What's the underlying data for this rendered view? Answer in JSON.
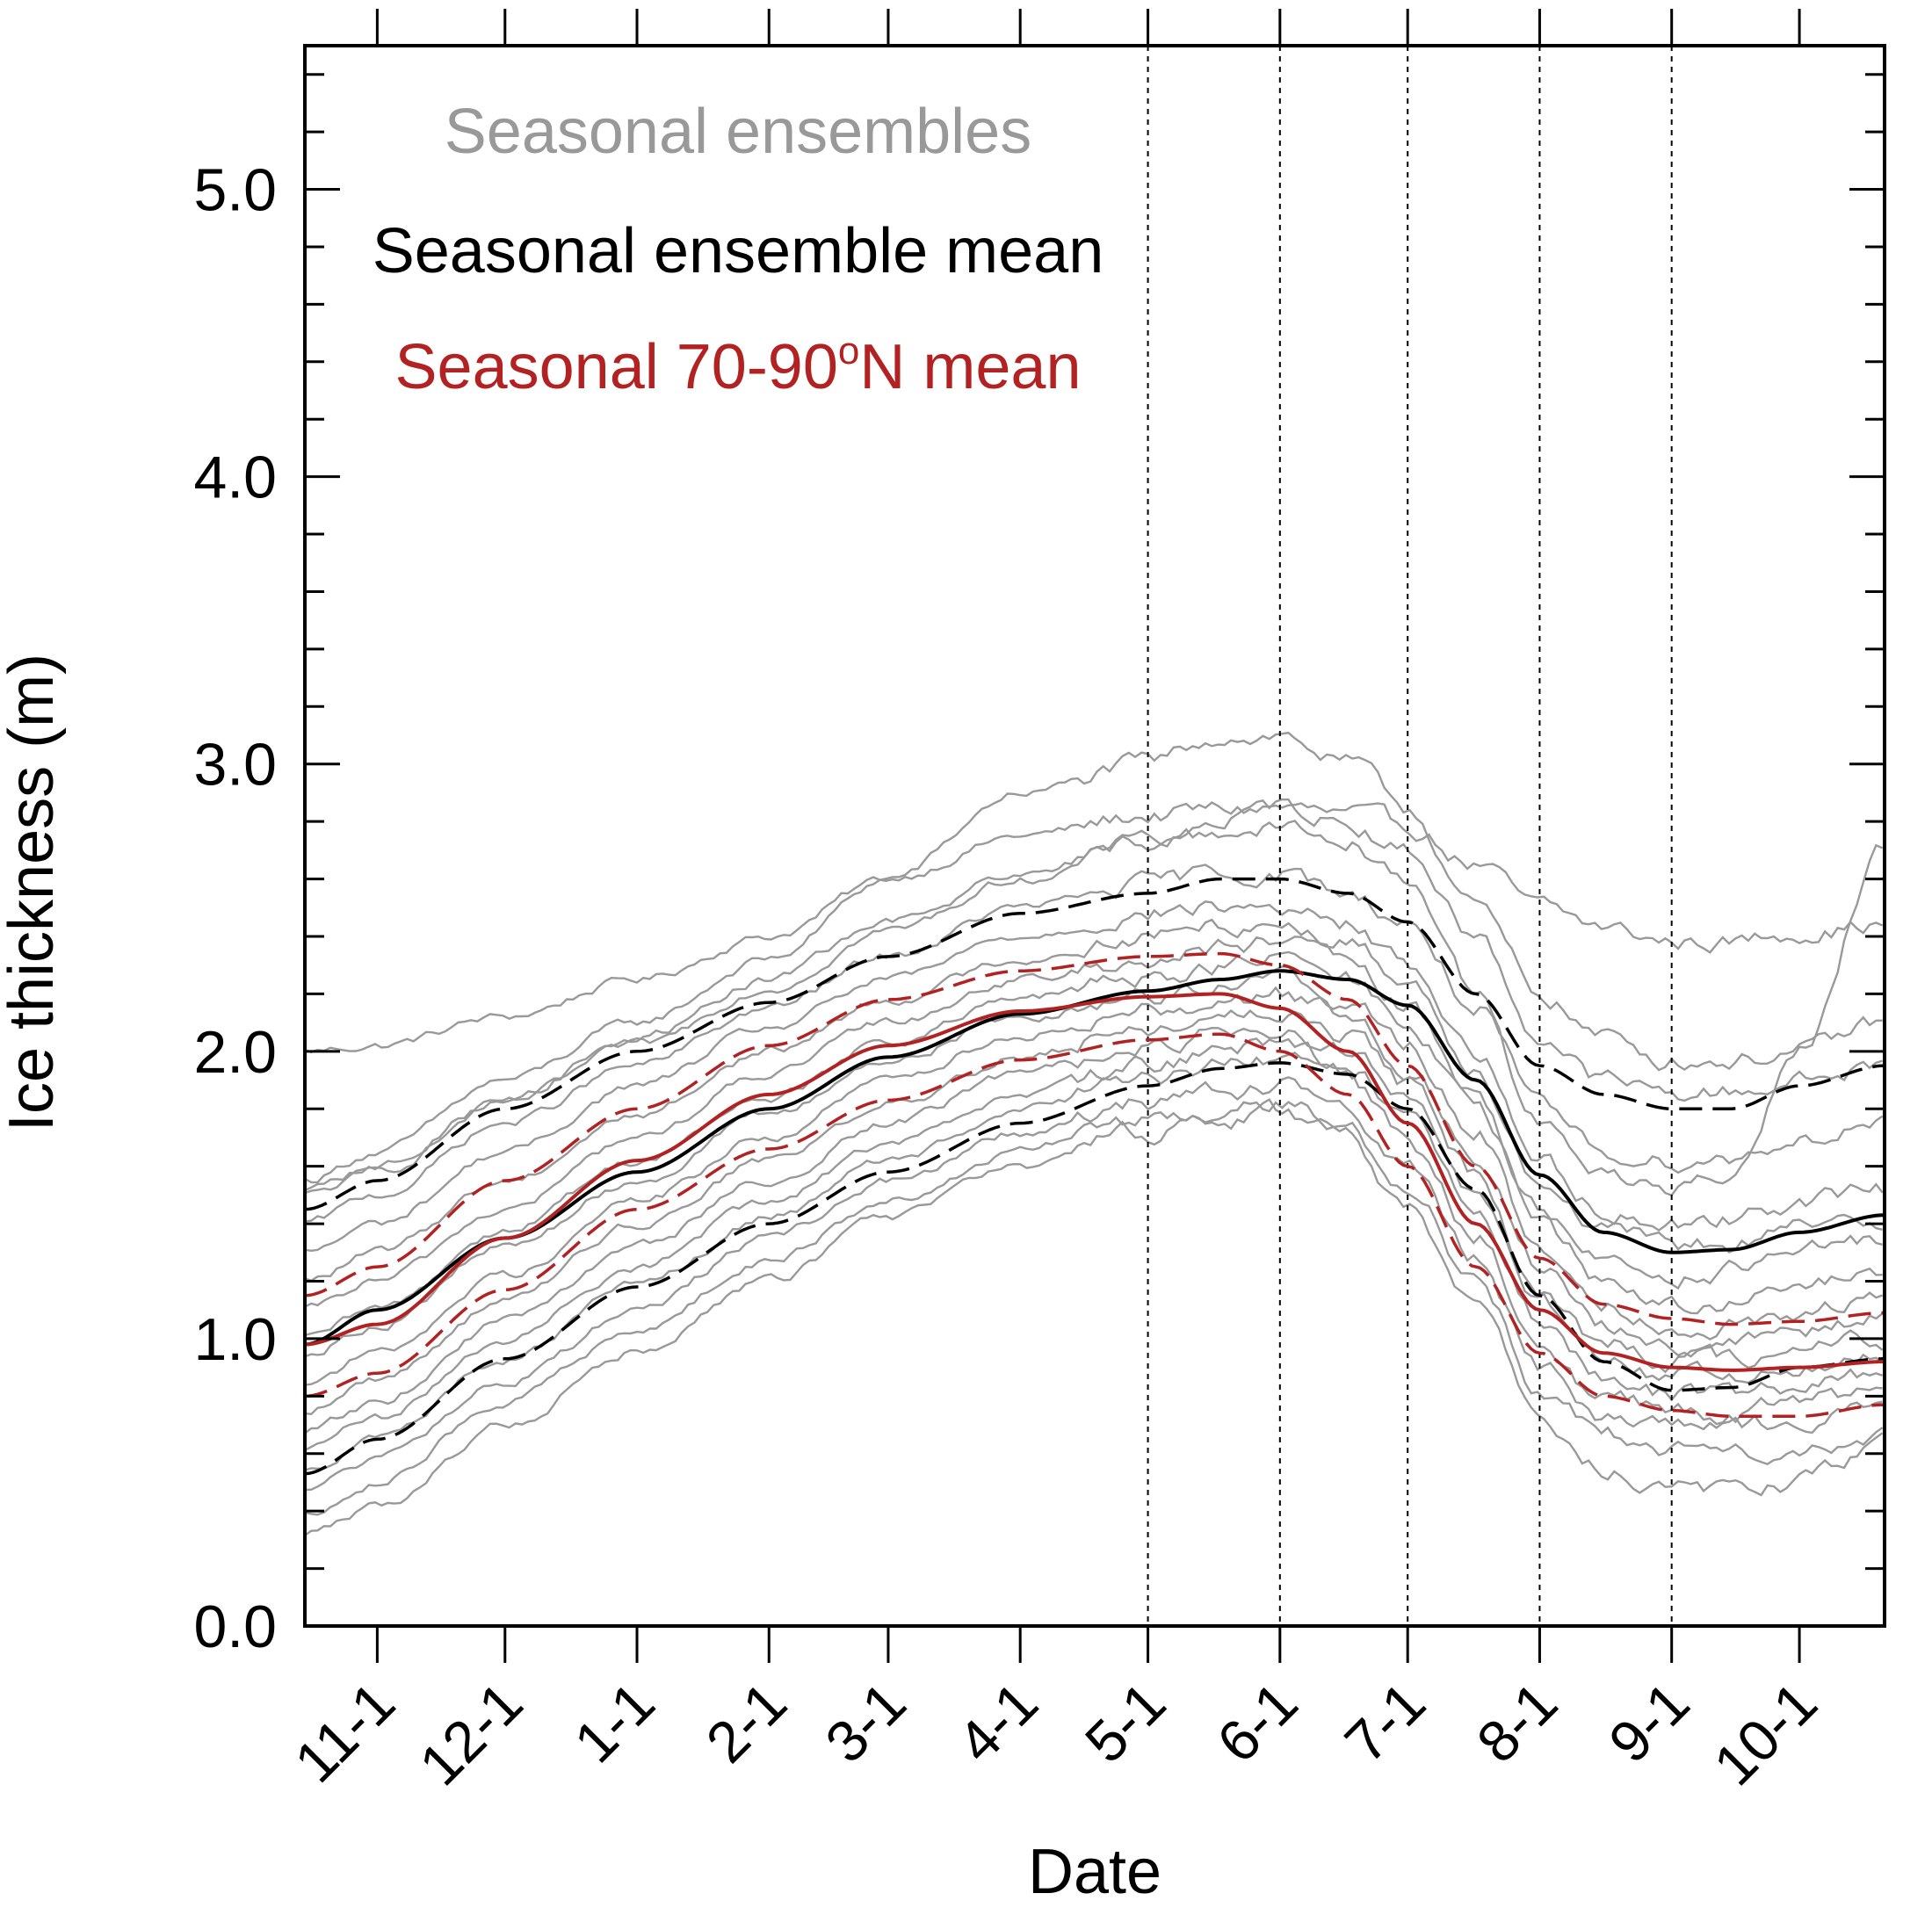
{
  "chart_data": {
    "type": "line",
    "title": "",
    "xlabel": "Date",
    "ylabel": "Ice thickness (m)",
    "x_unit": "days since Oct 15 (Oct 15 to Oct 20 of following year)",
    "xlim": [
      0,
      371
    ],
    "ylim": [
      0,
      5.5
    ],
    "y_ticks": [
      0.0,
      1.0,
      2.0,
      3.0,
      4.0,
      5.0
    ],
    "y_tick_labels": [
      "0.0",
      "1.0",
      "2.0",
      "3.0",
      "4.0",
      "5.0"
    ],
    "x_tick_labels": [
      "11-1",
      "12-1",
      "1-1",
      "2-1",
      "3-1",
      "4-1",
      "5-1",
      "6-1",
      "7-1",
      "8-1",
      "9-1",
      "10-1"
    ],
    "x_ticks": [
      17,
      47,
      78,
      109,
      137,
      168,
      198,
      229,
      259,
      290,
      321,
      351
    ],
    "vertical_dashed_lines": [
      198,
      229,
      259,
      290,
      321
    ],
    "grid": false,
    "legend_position": "top-left",
    "legend": [
      {
        "label": "Seasonal ensembles",
        "color": "#999999"
      },
      {
        "label": "Seasonal ensemble mean",
        "color": "#000000"
      },
      {
        "label": "Seasonal 70-90",
        "label_sup": "o",
        "label_end": "N mean",
        "color": "#b22222"
      }
    ],
    "colors": {
      "ensemble": "#999999",
      "ensemble_mean": "#000000",
      "regional_mean": "#b22222"
    },
    "series": [
      {
        "name": "Seasonal ensemble mean",
        "role": "mean",
        "color": "#000000",
        "style": "solid",
        "x": [
          0,
          17,
          47,
          78,
          109,
          137,
          168,
          198,
          215,
          229,
          245,
          259,
          275,
          290,
          305,
          321,
          335,
          351,
          371
        ],
        "y": [
          0.98,
          1.1,
          1.35,
          1.58,
          1.8,
          1.98,
          2.13,
          2.21,
          2.25,
          2.28,
          2.25,
          2.16,
          1.9,
          1.57,
          1.37,
          1.3,
          1.31,
          1.37,
          1.43
        ]
      },
      {
        "name": "Ensemble mean + spread",
        "role": "bound",
        "color": "#000000",
        "style": "dashed",
        "x": [
          0,
          17,
          47,
          78,
          109,
          137,
          168,
          198,
          215,
          229,
          245,
          259,
          275,
          290,
          305,
          321,
          335,
          351,
          371
        ],
        "y": [
          1.45,
          1.55,
          1.8,
          2.0,
          2.17,
          2.33,
          2.48,
          2.55,
          2.6,
          2.6,
          2.55,
          2.45,
          2.2,
          1.95,
          1.85,
          1.8,
          1.8,
          1.88,
          1.95
        ]
      },
      {
        "name": "Ensemble mean - spread",
        "role": "bound",
        "color": "#000000",
        "style": "dashed",
        "x": [
          0,
          17,
          47,
          78,
          109,
          137,
          168,
          198,
          215,
          229,
          245,
          259,
          275,
          290,
          305,
          321,
          335,
          351,
          371
        ],
        "y": [
          0.53,
          0.65,
          0.93,
          1.18,
          1.4,
          1.58,
          1.75,
          1.88,
          1.94,
          1.96,
          1.92,
          1.8,
          1.52,
          1.15,
          0.92,
          0.82,
          0.83,
          0.9,
          0.93
        ]
      },
      {
        "name": "Seasonal 70-90N mean",
        "role": "mean",
        "color": "#b22222",
        "style": "solid",
        "x": [
          0,
          17,
          47,
          78,
          109,
          137,
          168,
          198,
          215,
          229,
          245,
          259,
          275,
          290,
          305,
          321,
          335,
          351,
          371
        ],
        "y": [
          0.98,
          1.05,
          1.35,
          1.62,
          1.85,
          2.02,
          2.14,
          2.19,
          2.2,
          2.15,
          2.0,
          1.75,
          1.4,
          1.1,
          0.95,
          0.9,
          0.89,
          0.9,
          0.92
        ]
      },
      {
        "name": "70-90N mean + spread",
        "role": "bound",
        "color": "#b22222",
        "style": "dashed",
        "x": [
          0,
          17,
          47,
          78,
          109,
          137,
          168,
          198,
          215,
          229,
          245,
          259,
          275,
          290,
          305,
          321,
          335,
          351,
          371
        ],
        "y": [
          1.15,
          1.25,
          1.55,
          1.8,
          2.02,
          2.18,
          2.28,
          2.33,
          2.34,
          2.3,
          2.18,
          1.95,
          1.6,
          1.28,
          1.12,
          1.07,
          1.05,
          1.06,
          1.09
        ]
      },
      {
        "name": "70-90N mean - spread",
        "role": "bound",
        "color": "#b22222",
        "style": "dashed",
        "x": [
          0,
          17,
          47,
          78,
          109,
          137,
          168,
          198,
          215,
          229,
          245,
          259,
          275,
          290,
          305,
          321,
          335,
          351,
          371
        ],
        "y": [
          0.8,
          0.88,
          1.17,
          1.45,
          1.66,
          1.83,
          1.97,
          2.04,
          2.06,
          2.0,
          1.85,
          1.6,
          1.25,
          0.95,
          0.8,
          0.75,
          0.73,
          0.73,
          0.77
        ]
      }
    ],
    "ensemble_members": [
      {
        "x": [
          0,
          17,
          47,
          78,
          109,
          137,
          168,
          198,
          215,
          229,
          245,
          259,
          275,
          290,
          305,
          321,
          335,
          351,
          371
        ],
        "y": [
          2.0,
          2.02,
          2.12,
          2.25,
          2.4,
          2.6,
          2.75,
          2.82,
          2.84,
          2.85,
          2.82,
          2.78,
          2.65,
          2.5,
          2.43,
          2.38,
          2.38,
          2.42,
          2.44
        ]
      },
      {
        "x": [
          0,
          17,
          47,
          78,
          109,
          137,
          168,
          198,
          215,
          229,
          245,
          259,
          275,
          290,
          305,
          321,
          335,
          351,
          371
        ],
        "y": [
          1.55,
          1.65,
          1.9,
          2.1,
          2.32,
          2.6,
          2.9,
          3.0,
          3.1,
          3.1,
          3.0,
          2.85,
          2.5,
          2.2,
          2.05,
          1.97,
          1.97,
          2.0,
          2.1
        ]
      },
      {
        "x": [
          0,
          17,
          47,
          78,
          109,
          137,
          168,
          198,
          215,
          229,
          245,
          259,
          275,
          290,
          305,
          321,
          335,
          351,
          371
        ],
        "y": [
          1.5,
          1.58,
          1.82,
          2.02,
          2.22,
          2.42,
          2.6,
          2.72,
          2.8,
          2.85,
          2.8,
          2.7,
          2.4,
          2.05,
          1.9,
          1.85,
          1.86,
          1.9,
          1.95
        ]
      },
      {
        "x": [
          0,
          17,
          47,
          78,
          109,
          137,
          168,
          198,
          215,
          229,
          245,
          259,
          275,
          290,
          305,
          321,
          335,
          351,
          371
        ],
        "y": [
          1.4,
          1.5,
          1.75,
          1.95,
          2.15,
          2.33,
          2.5,
          2.58,
          2.62,
          2.62,
          2.55,
          2.45,
          2.15,
          1.8,
          1.65,
          1.62,
          1.63,
          1.7,
          1.75
        ]
      },
      {
        "x": [
          0,
          17,
          47,
          78,
          109,
          137,
          168,
          198,
          215,
          229,
          245,
          259,
          275,
          290,
          305,
          321,
          335,
          351,
          371
        ],
        "y": [
          1.3,
          1.4,
          1.65,
          1.88,
          2.08,
          2.25,
          2.4,
          2.48,
          2.5,
          2.5,
          2.44,
          2.3,
          2.0,
          1.62,
          1.45,
          1.4,
          1.42,
          1.48,
          1.52
        ]
      },
      {
        "x": [
          0,
          17,
          47,
          78,
          109,
          137,
          168,
          198,
          215,
          229,
          245,
          259,
          275,
          290,
          305,
          321,
          335,
          351,
          371
        ],
        "y": [
          1.2,
          1.3,
          1.55,
          1.78,
          2.0,
          2.18,
          2.32,
          2.4,
          2.44,
          2.45,
          2.38,
          2.25,
          1.95,
          1.55,
          1.38,
          1.32,
          1.33,
          1.38,
          1.42
        ]
      },
      {
        "x": [
          0,
          17,
          47,
          78,
          109,
          137,
          168,
          198,
          215,
          229,
          245,
          259,
          275,
          290,
          305,
          321,
          335,
          351,
          371
        ],
        "y": [
          1.1,
          1.2,
          1.45,
          1.7,
          1.92,
          2.1,
          2.25,
          2.32,
          2.36,
          2.38,
          2.3,
          2.15,
          1.85,
          1.45,
          1.28,
          1.22,
          1.24,
          1.3,
          1.34
        ]
      },
      {
        "x": [
          0,
          17,
          47,
          78,
          109,
          137,
          168,
          198,
          215,
          229,
          245,
          259,
          275,
          290,
          305,
          321,
          335,
          351,
          371
        ],
        "y": [
          1.0,
          1.1,
          1.38,
          1.62,
          1.84,
          2.03,
          2.18,
          2.26,
          2.3,
          2.32,
          2.25,
          2.1,
          1.8,
          1.4,
          1.2,
          1.12,
          1.12,
          1.18,
          1.22
        ]
      },
      {
        "x": [
          0,
          17,
          47,
          78,
          109,
          137,
          168,
          198,
          215,
          229,
          245,
          259,
          275,
          290,
          305,
          321,
          335,
          351,
          371
        ],
        "y": [
          0.95,
          1.05,
          1.32,
          1.55,
          1.78,
          1.97,
          2.12,
          2.2,
          2.24,
          2.26,
          2.18,
          2.02,
          1.72,
          1.32,
          1.12,
          1.05,
          1.05,
          1.1,
          1.14
        ]
      },
      {
        "x": [
          0,
          17,
          47,
          78,
          109,
          137,
          168,
          198,
          215,
          229,
          245,
          259,
          275,
          290,
          305,
          321,
          335,
          351,
          371
        ],
        "y": [
          0.85,
          0.95,
          1.22,
          1.48,
          1.7,
          1.9,
          2.06,
          2.15,
          2.18,
          2.2,
          2.12,
          1.95,
          1.65,
          1.25,
          1.05,
          0.98,
          0.98,
          1.03,
          1.07
        ]
      },
      {
        "x": [
          0,
          17,
          47,
          78,
          109,
          137,
          168,
          198,
          215,
          229,
          245,
          259,
          275,
          290,
          305,
          321,
          335,
          351,
          371
        ],
        "y": [
          0.75,
          0.86,
          1.13,
          1.4,
          1.62,
          1.82,
          1.98,
          2.08,
          2.12,
          2.14,
          2.06,
          1.88,
          1.58,
          1.18,
          0.98,
          0.92,
          0.92,
          0.96,
          1.0
        ]
      },
      {
        "x": [
          0,
          17,
          47,
          78,
          109,
          137,
          168,
          198,
          215,
          229,
          245,
          259,
          275,
          290,
          305,
          321,
          335,
          351,
          371
        ],
        "y": [
          0.68,
          0.78,
          1.06,
          1.32,
          1.55,
          1.75,
          1.92,
          2.02,
          2.06,
          2.08,
          2.0,
          1.82,
          1.5,
          1.12,
          0.93,
          0.87,
          0.86,
          0.9,
          0.94
        ]
      },
      {
        "x": [
          0,
          17,
          47,
          78,
          109,
          137,
          168,
          198,
          215,
          229,
          245,
          259,
          275,
          290,
          305,
          321,
          335,
          351,
          371
        ],
        "y": [
          0.62,
          0.72,
          1.0,
          1.25,
          1.48,
          1.68,
          1.85,
          1.96,
          2.0,
          2.02,
          1.94,
          1.75,
          1.43,
          1.05,
          0.87,
          0.8,
          0.8,
          0.84,
          0.88
        ]
      },
      {
        "x": [
          0,
          17,
          47,
          78,
          109,
          137,
          168,
          198,
          215,
          229,
          245,
          259,
          275,
          290,
          305,
          321,
          335,
          351,
          371
        ],
        "y": [
          0.55,
          0.65,
          0.93,
          1.18,
          1.42,
          1.62,
          1.8,
          1.9,
          1.94,
          1.96,
          1.88,
          1.68,
          1.35,
          0.98,
          0.8,
          0.74,
          0.74,
          0.78,
          0.82
        ]
      },
      {
        "x": [
          0,
          17,
          47,
          78,
          109,
          137,
          168,
          198,
          215,
          229,
          245,
          259,
          275,
          290,
          305,
          321,
          335,
          351,
          371
        ],
        "y": [
          0.48,
          0.58,
          0.85,
          1.1,
          1.35,
          1.55,
          1.72,
          1.82,
          1.86,
          1.88,
          1.8,
          1.6,
          1.28,
          0.9,
          0.73,
          0.68,
          0.68,
          0.72,
          0.76
        ]
      },
      {
        "x": [
          0,
          17,
          47,
          78,
          109,
          137,
          168,
          198,
          215,
          229,
          245,
          259,
          275,
          290,
          305,
          321,
          335,
          351,
          371
        ],
        "y": [
          0.4,
          0.5,
          0.78,
          1.03,
          1.27,
          1.48,
          1.66,
          1.76,
          1.8,
          1.82,
          1.74,
          1.52,
          1.2,
          0.82,
          0.66,
          0.6,
          0.6,
          0.63,
          0.67
        ]
      },
      {
        "x": [
          0,
          17,
          47,
          78,
          109,
          137,
          168,
          198,
          215,
          229,
          245,
          259,
          275,
          290,
          305,
          321,
          335,
          351,
          371
        ],
        "y": [
          0.32,
          0.42,
          0.7,
          0.96,
          1.2,
          1.42,
          1.6,
          1.72,
          1.76,
          1.78,
          1.7,
          1.46,
          1.12,
          0.72,
          0.55,
          0.47,
          0.46,
          0.5,
          0.62
        ]
      },
      {
        "x": [
          0,
          17,
          47,
          78,
          109,
          137,
          168,
          198,
          215,
          229,
          245,
          259,
          275,
          290,
          305,
          321,
          335,
          351,
          371
        ],
        "y": [
          1.52,
          1.6,
          1.83,
          2.05,
          2.25,
          2.45,
          2.62,
          2.72,
          2.76,
          2.78,
          2.72,
          2.6,
          2.2,
          1.75,
          1.58,
          1.52,
          1.55,
          2.0,
          2.7
        ]
      }
    ]
  }
}
